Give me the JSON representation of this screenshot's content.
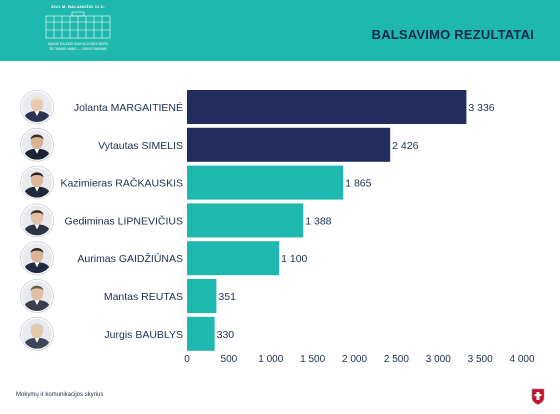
{
  "header": {
    "logo_top": "2021 M. BALANDŽIO 11 D.",
    "logo_line1": "KAUNO RAJONO SAVIVALDYBĖS MERO",
    "logo_line2": "ŠILTNAMIO NAMO — VIDUS RINKIMAI",
    "title": "BALSAVIMO REZULTATAI"
  },
  "footer": {
    "text": "Mokymų ir komunikacijos skyrius"
  },
  "icons": {
    "avatar": "person-portrait-icon",
    "crest": "coat-of-arms-icon"
  },
  "colors": {
    "header_bg": "#1fb8ae",
    "title": "#0d2a4c",
    "bar_dark": "#222d5f",
    "bar_teal": "#1fb8ae"
  },
  "chart_data": {
    "type": "bar",
    "orientation": "horizontal",
    "title": "BALSAVIMO REZULTATAI",
    "categories": [
      "Jolanta MARGAITIENĖ",
      "Vytautas SIMELIS",
      "Kazimieras RAČKAUSKIS",
      "Gediminas LIPNEVIČIUS",
      "Aurimas GAIDŽIŪNAS",
      "Mantas REUTAS",
      "Jurgis BAUBLYS"
    ],
    "values": [
      3336,
      2426,
      1865,
      1388,
      1100,
      351,
      330
    ],
    "value_labels": [
      "3 336",
      "2 426",
      "1 865",
      "1 388",
      "1 100",
      "351",
      "330"
    ],
    "bar_colors": [
      "#222d5f",
      "#222d5f",
      "#1fb8ae",
      "#1fb8ae",
      "#1fb8ae",
      "#1fb8ae",
      "#1fb8ae"
    ],
    "xlim": [
      0,
      4000
    ],
    "x_ticks": [
      0,
      500,
      1000,
      1500,
      2000,
      2500,
      3000,
      3500,
      4000
    ],
    "x_tick_labels": [
      "0",
      "500",
      "1 000",
      "1 500",
      "2 000",
      "2 500",
      "3 000",
      "3 500",
      "4 000"
    ],
    "grid": false,
    "legend": false
  }
}
